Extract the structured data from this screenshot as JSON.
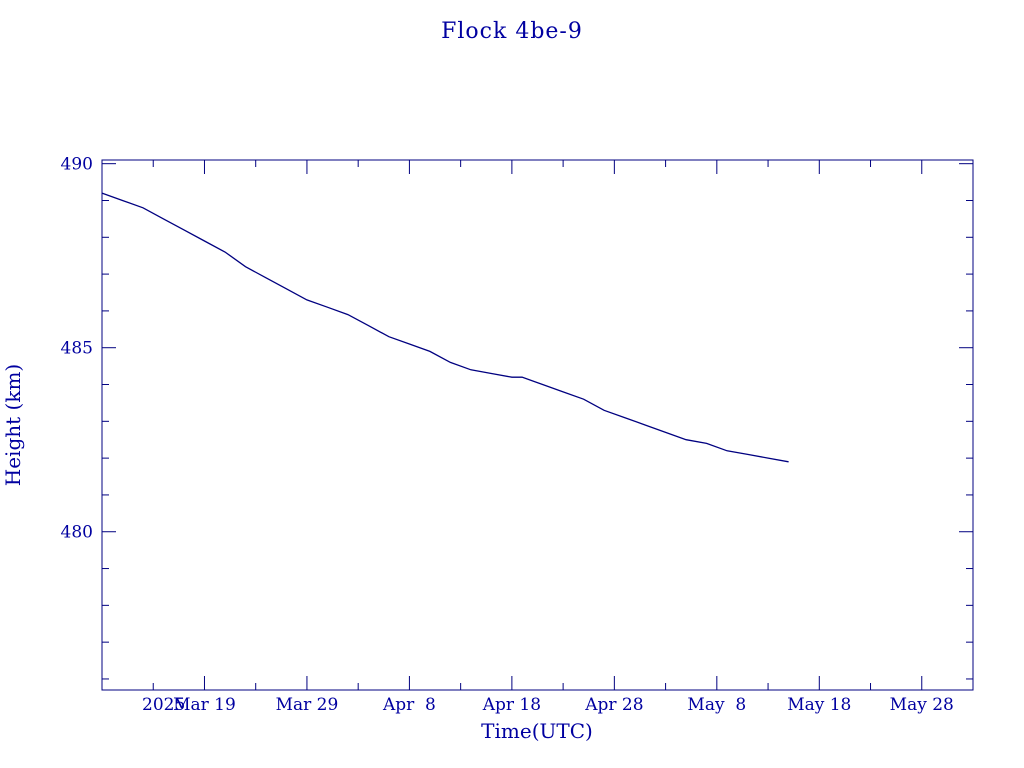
{
  "chart_data": {
    "type": "line",
    "title": "Flock 4be-9",
    "xlabel": "Time(UTC)",
    "ylabel": "Height (km)",
    "x_start_label": "2025",
    "x_ticks": [
      "Mar 19",
      "Mar 29",
      "Apr  8",
      "Apr 18",
      "Apr 28",
      "May  8",
      "May 18",
      "May 28"
    ],
    "y_ticks": [
      480,
      485,
      490
    ],
    "ylim": [
      475.7,
      490.1
    ],
    "xlim": [
      "2025-03-09",
      "2025-06-02"
    ],
    "grid": false,
    "color": "#000080",
    "series": [
      {
        "x": [
          "2025-03-09",
          "2025-03-11",
          "2025-03-13",
          "2025-03-15",
          "2025-03-17",
          "2025-03-19",
          "2025-03-21",
          "2025-03-23",
          "2025-03-25",
          "2025-03-27",
          "2025-03-29",
          "2025-03-31",
          "2025-04-02",
          "2025-04-04",
          "2025-04-06",
          "2025-04-08",
          "2025-04-10",
          "2025-04-12",
          "2025-04-14",
          "2025-04-16",
          "2025-04-18",
          "2025-04-19",
          "2025-04-21",
          "2025-04-23",
          "2025-04-25",
          "2025-04-27",
          "2025-04-29",
          "2025-05-01",
          "2025-05-03",
          "2025-05-05",
          "2025-05-07",
          "2025-05-09",
          "2025-05-11",
          "2025-05-13",
          "2025-05-15"
        ],
        "y": [
          489.2,
          489.0,
          488.8,
          488.5,
          488.2,
          487.9,
          487.6,
          487.2,
          486.9,
          486.6,
          486.3,
          486.1,
          485.9,
          485.6,
          485.3,
          485.1,
          484.9,
          484.6,
          484.4,
          484.3,
          484.2,
          484.2,
          484.0,
          483.8,
          483.6,
          483.3,
          483.1,
          482.9,
          482.7,
          482.5,
          482.4,
          482.2,
          482.1,
          482.0,
          481.9
        ]
      }
    ]
  }
}
